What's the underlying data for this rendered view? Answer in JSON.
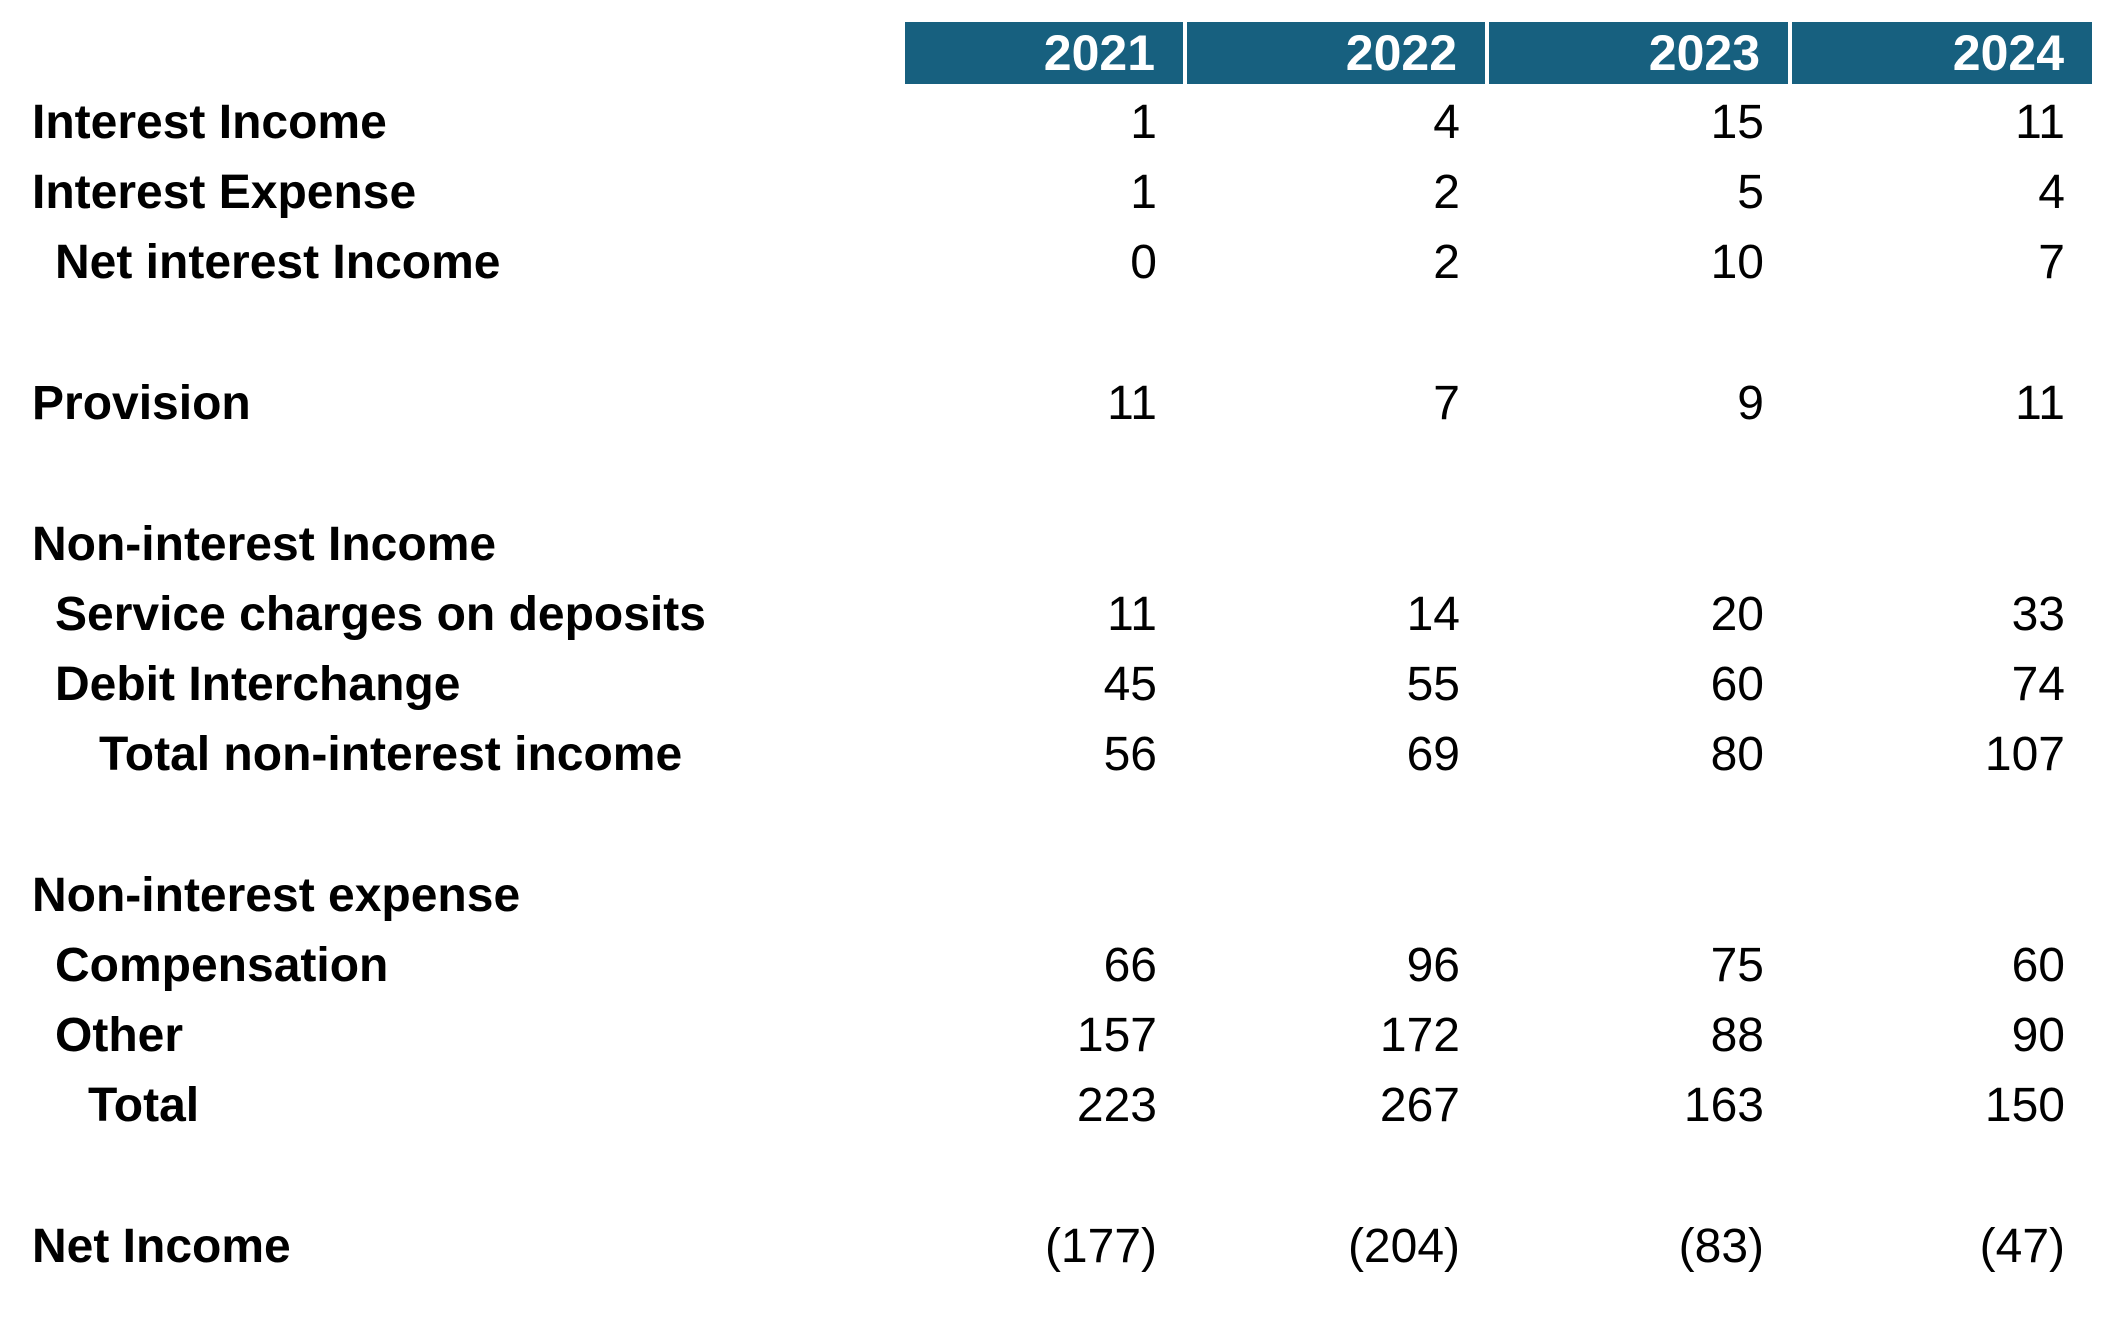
{
  "years": [
    "2021",
    "2022",
    "2023",
    "2024"
  ],
  "rows": [
    {
      "label": "Interest Income",
      "values": [
        "1",
        "4",
        "15",
        "11"
      ]
    },
    {
      "label": "Interest Expense",
      "values": [
        "1",
        "2",
        "5",
        "4"
      ]
    },
    {
      "label": "Net interest Income",
      "values": [
        "0",
        "2",
        "10",
        "7"
      ]
    },
    {
      "label": "Provision",
      "values": [
        "11",
        "7",
        "9",
        "11"
      ]
    },
    {
      "label": "Non-interest Income",
      "values": []
    },
    {
      "label": "Service charges on deposits",
      "values": [
        "11",
        "14",
        "20",
        "33"
      ]
    },
    {
      "label": "Debit Interchange",
      "values": [
        "45",
        "55",
        "60",
        "74"
      ]
    },
    {
      "label": "Total non-interest income",
      "values": [
        "56",
        "69",
        "80",
        "107"
      ]
    },
    {
      "label": "Non-interest expense",
      "values": []
    },
    {
      "label": "Compensation",
      "values": [
        "66",
        "96",
        "75",
        "60"
      ]
    },
    {
      "label": "Other",
      "values": [
        "157",
        "172",
        "88",
        "90"
      ]
    },
    {
      "label": "Total",
      "values": [
        "223",
        "267",
        "163",
        "150"
      ]
    },
    {
      "label": "Net Income",
      "values": [
        "(177)",
        "(204)",
        "(83)",
        "(47)"
      ]
    }
  ],
  "colors": {
    "header_bg": "#17607f",
    "header_text": "#ffffff"
  }
}
